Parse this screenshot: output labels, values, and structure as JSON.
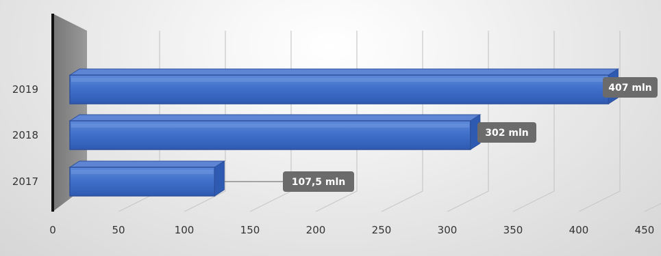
{
  "chart_data": {
    "type": "bar",
    "orientation": "horizontal",
    "categories": [
      "2017",
      "2018",
      "2019"
    ],
    "values": [
      107.5,
      302,
      407
    ],
    "data_labels": [
      "107,5 mln",
      "302 mln",
      "407 mln"
    ],
    "x_ticks": [
      "0",
      "50",
      "100",
      "150",
      "200",
      "250",
      "300",
      "350",
      "400",
      "450"
    ],
    "xlim": [
      0,
      450
    ],
    "grid": true,
    "legend": false,
    "bar_color": "#4472c4",
    "wall_color": "#8c8c8c",
    "callout_color": "#6b6b6b"
  }
}
